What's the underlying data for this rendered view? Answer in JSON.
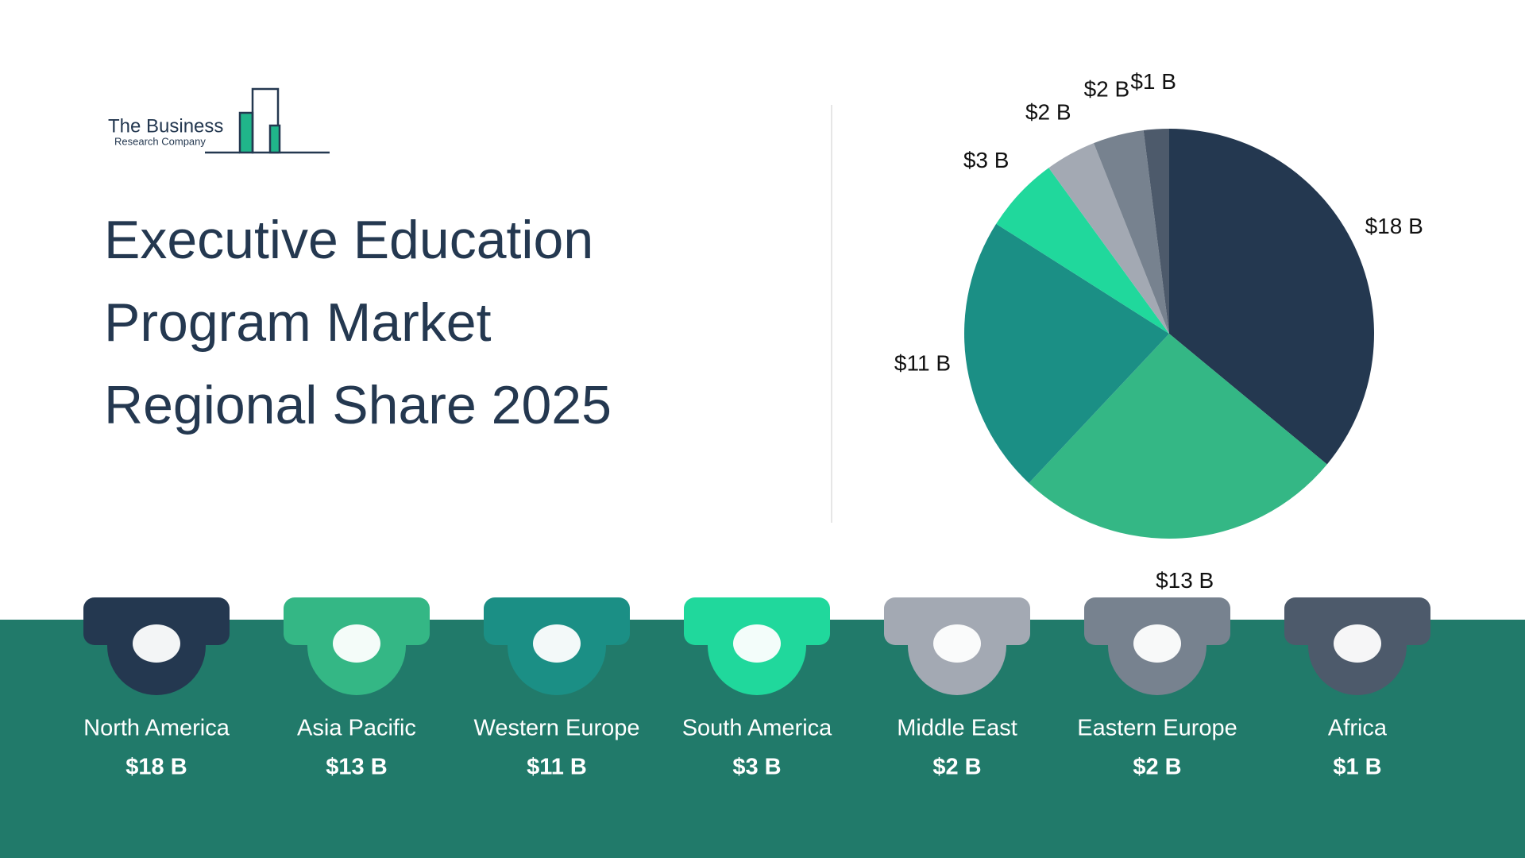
{
  "logo": {
    "line1": "The Business",
    "line2": "Research Company"
  },
  "chart_data": {
    "type": "pie",
    "title": "Executive Education Program Market Regional Share 2025",
    "categories": [
      "North America",
      "Asia Pacific",
      "Western Europe",
      "South America",
      "Middle East",
      "Eastern Europe",
      "Africa"
    ],
    "values": [
      18,
      13,
      11,
      3,
      2,
      2,
      1
    ],
    "value_labels": [
      "$18 B",
      "$13 B",
      "$11 B",
      "$3 B",
      "$2 B",
      "$2 B",
      "$1 B"
    ],
    "colors": [
      "#243850",
      "#34b785",
      "#1b8f85",
      "#20d89c",
      "#a3a9b3",
      "#77828f",
      "#4d5a6b"
    ]
  }
}
